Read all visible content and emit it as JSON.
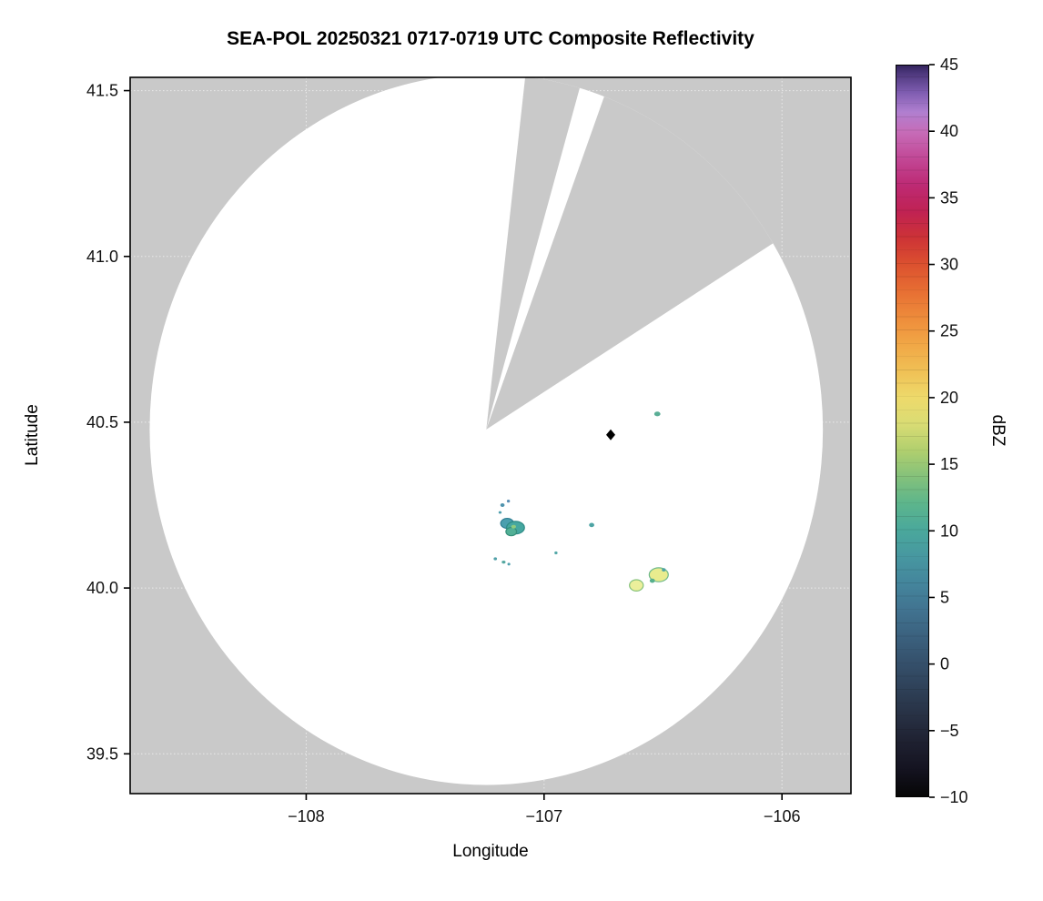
{
  "chart_data": {
    "type": "heatmap",
    "title": "SEA-POL 20250321 0717-0719 UTC Composite Reflectivity",
    "xlabel": "Longitude",
    "ylabel": "Latitude",
    "colorbar_label": "dBZ",
    "xlim": [
      -108.74,
      -105.71
    ],
    "ylim": [
      39.38,
      41.54
    ],
    "grid": true,
    "legend": "none",
    "x_ticks": [
      {
        "v": -108,
        "label": "−108"
      },
      {
        "v": -107,
        "label": "−107"
      },
      {
        "v": -106,
        "label": "−106"
      }
    ],
    "y_ticks": [
      {
        "v": 39.5,
        "label": "39.5"
      },
      {
        "v": 40.0,
        "label": "40.0"
      },
      {
        "v": 40.5,
        "label": "40.5"
      },
      {
        "v": 41.0,
        "label": "41.0"
      },
      {
        "v": 41.5,
        "label": "41.5"
      }
    ],
    "colorbar": {
      "min": -10,
      "max": 45,
      "ticks": [
        {
          "v": -10,
          "label": "−10"
        },
        {
          "v": -5,
          "label": "−5"
        },
        {
          "v": 0,
          "label": "0"
        },
        {
          "v": 5,
          "label": "5"
        },
        {
          "v": 10,
          "label": "10"
        },
        {
          "v": 15,
          "label": "15"
        },
        {
          "v": 20,
          "label": "20"
        },
        {
          "v": 25,
          "label": "25"
        },
        {
          "v": 30,
          "label": "30"
        },
        {
          "v": 35,
          "label": "35"
        },
        {
          "v": 40,
          "label": "40"
        },
        {
          "v": 45,
          "label": "45"
        }
      ],
      "stops": [
        {
          "v": -10,
          "c": "#060606"
        },
        {
          "v": -8,
          "c": "#141320"
        },
        {
          "v": -6,
          "c": "#1e2030"
        },
        {
          "v": -4,
          "c": "#273043"
        },
        {
          "v": -2,
          "c": "#2e4057"
        },
        {
          "v": 0,
          "c": "#35506b"
        },
        {
          "v": 2,
          "c": "#3b617e"
        },
        {
          "v": 4,
          "c": "#417390"
        },
        {
          "v": 6,
          "c": "#44859c"
        },
        {
          "v": 8,
          "c": "#4797a0"
        },
        {
          "v": 10,
          "c": "#4aa89c"
        },
        {
          "v": 12,
          "c": "#5cb58c"
        },
        {
          "v": 14,
          "c": "#83c17b"
        },
        {
          "v": 16,
          "c": "#b0cf6e"
        },
        {
          "v": 18,
          "c": "#d9dc74"
        },
        {
          "v": 20,
          "c": "#eeda6b"
        },
        {
          "v": 22,
          "c": "#f0c055"
        },
        {
          "v": 24,
          "c": "#f1a746"
        },
        {
          "v": 26,
          "c": "#ee8c3b"
        },
        {
          "v": 28,
          "c": "#e76f33"
        },
        {
          "v": 30,
          "c": "#dc512f"
        },
        {
          "v": 32,
          "c": "#cd3336"
        },
        {
          "v": 34,
          "c": "#c02253"
        },
        {
          "v": 36,
          "c": "#bd2a74"
        },
        {
          "v": 38,
          "c": "#c24896"
        },
        {
          "v": 40,
          "c": "#c66cb8"
        },
        {
          "v": 41.5,
          "c": "#b07fd0"
        },
        {
          "v": 43,
          "c": "#7e5cb0"
        },
        {
          "v": 44.5,
          "c": "#4a3579"
        },
        {
          "v": 45,
          "c": "#33245c"
        }
      ]
    },
    "coverage": {
      "center_lon": -107.243,
      "center_lat": 40.478,
      "radius_lon_deg": 1.415,
      "radius_lat_deg": 1.072,
      "missing_sectors_az_deg": [
        [
          6.3,
          16.3
        ],
        [
          19.5,
          57.0
        ]
      ],
      "background_color": "#c9c9c9",
      "coverage_color": "#ffffff",
      "gridline_color": "#eaeaea"
    },
    "radar_marker": {
      "lon": -106.72,
      "lat": 40.462,
      "shape": "diamond",
      "color": "#000000"
    },
    "echoes": [
      {
        "lon": -107.155,
        "lat": 40.195,
        "w": 0.055,
        "h": 0.03,
        "fill": "#4b9fae",
        "stroke": "#2f7d92"
      },
      {
        "lon": -107.12,
        "lat": 40.182,
        "w": 0.075,
        "h": 0.038,
        "fill": "#45a7a0",
        "stroke": "#2d8a84"
      },
      {
        "lon": -107.138,
        "lat": 40.17,
        "w": 0.045,
        "h": 0.025,
        "fill": "#52b096",
        "stroke": "#368f7a"
      },
      {
        "lon": -107.128,
        "lat": 40.185,
        "w": 0.02,
        "h": 0.011,
        "fill": "#8ecb7f",
        "stroke": ""
      },
      {
        "lon": -107.175,
        "lat": 40.25,
        "w": 0.018,
        "h": 0.011,
        "fill": "#4f93ad",
        "stroke": ""
      },
      {
        "lon": -107.15,
        "lat": 40.262,
        "w": 0.013,
        "h": 0.009,
        "fill": "#5b8fb5",
        "stroke": ""
      },
      {
        "lon": -107.185,
        "lat": 40.228,
        "w": 0.013,
        "h": 0.008,
        "fill": "#4f9fae",
        "stroke": ""
      },
      {
        "lon": -106.8,
        "lat": 40.19,
        "w": 0.022,
        "h": 0.013,
        "fill": "#4da4a4",
        "stroke": ""
      },
      {
        "lon": -107.205,
        "lat": 40.088,
        "w": 0.014,
        "h": 0.009,
        "fill": "#4fa0a8",
        "stroke": ""
      },
      {
        "lon": -107.17,
        "lat": 40.078,
        "w": 0.016,
        "h": 0.009,
        "fill": "#55a8a0",
        "stroke": ""
      },
      {
        "lon": -107.148,
        "lat": 40.072,
        "w": 0.012,
        "h": 0.008,
        "fill": "#4f9fae",
        "stroke": ""
      },
      {
        "lon": -106.95,
        "lat": 40.106,
        "w": 0.013,
        "h": 0.009,
        "fill": "#55a8a8",
        "stroke": ""
      },
      {
        "lon": -106.612,
        "lat": 40.008,
        "w": 0.058,
        "h": 0.034,
        "fill": "#ecef9b",
        "stroke": "#86c27c"
      },
      {
        "lon": -106.518,
        "lat": 40.04,
        "w": 0.08,
        "h": 0.042,
        "fill": "#e9ec8e",
        "stroke": "#6fb98a"
      },
      {
        "lon": -106.545,
        "lat": 40.022,
        "w": 0.022,
        "h": 0.013,
        "fill": "#57b08e",
        "stroke": ""
      },
      {
        "lon": -106.497,
        "lat": 40.055,
        "w": 0.016,
        "h": 0.01,
        "fill": "#4da4a4",
        "stroke": ""
      },
      {
        "lon": -106.524,
        "lat": 40.525,
        "w": 0.026,
        "h": 0.014,
        "fill": "#5aae96",
        "stroke": ""
      }
    ]
  }
}
